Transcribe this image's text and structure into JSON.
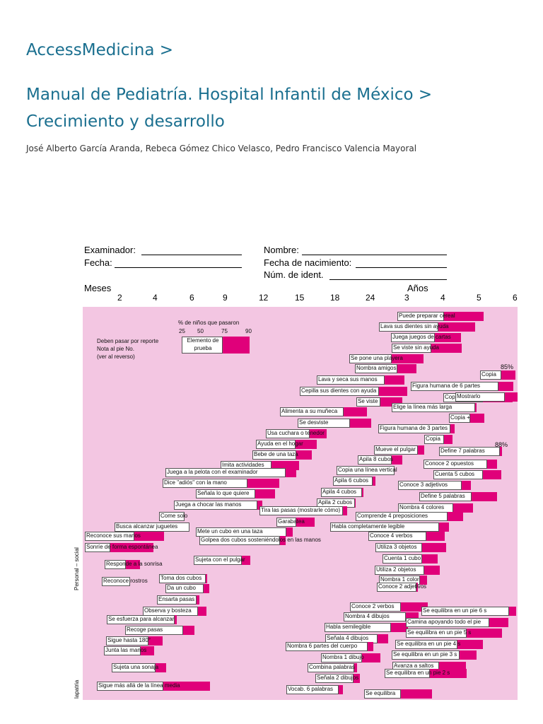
{
  "breadcrumb": {
    "root": "AccessMedicina >"
  },
  "title": "Manual de Pediatría. Hospital Infantil de México > Crecimiento y desarrollo",
  "authors": "José Alberto García Aranda, Rebeca Gómez Chico Velasco, Pedro Francisco Valencia Mayoral",
  "form": {
    "examinador": "Examinador:",
    "fecha": "Fecha:",
    "nombre": "Nombre:",
    "nacimiento": "Fecha de nacimiento:",
    "ident": "Núm. de ident."
  },
  "axis": {
    "meses": "Meses",
    "anos": "Años",
    "ticks": [
      "2",
      "4",
      "6",
      "9",
      "12",
      "15",
      "18",
      "24",
      "3",
      "4",
      "5",
      "6"
    ]
  },
  "legend": {
    "pct_title": "% de niños que pasaron",
    "pct_values": [
      "25",
      "50",
      "75",
      "90"
    ],
    "report": "Deben pasar por reporte",
    "note": "Nota al pie No.",
    "reverse": "(ver al reverso)",
    "element": "Elemento de prueba"
  },
  "percent_marks": [
    "85%",
    "88%"
  ],
  "sectors": [
    "Personal – social",
    "lapatria"
  ],
  "items": [
    "Puede preparar cereal",
    "Lava sus dientes sin ayuda",
    "Juega juegos de cartas",
    "Se viste sin ayuda",
    "Se pone una playera",
    "Nombra amigos",
    "Lava y seca sus manos",
    "Cepilla sus dientes con ayuda",
    "Se viste",
    "Alimenta a su muñeca",
    "Se desviste",
    "Usa cuchara o tenedor",
    "Ayuda en el hogar",
    "Bebe de una taza",
    "Imita actividades",
    "Juega a la pelota con el examinador",
    "Dice \"adiós\" con la mano",
    "Señala lo que quiere",
    "Juega a chocar las manos",
    "Come solo",
    "Busca alcanzar juguetes",
    "Reconoce sus manos",
    "Sonríe de forma espontánea",
    "Responde a la sonrisa",
    "Reconoce rostros",
    "Copia",
    "Figura humana de 6 partes",
    "Copia",
    "Mostrarlo",
    "Elige la línea más larga",
    "Copia +",
    "Figura humana de 3 partes",
    "Copia",
    "Mueve el pulgar",
    "Apila 8 cubos",
    "Copia una línea vertical",
    "Apila 6 cubos",
    "Apila 4 cubos",
    "Apila 2 cubos",
    "Tira las pasas (mostrarle cómo)",
    "Garabatea",
    "Mete un cubo en una taza",
    "Golpea dos cubos sosteniéndolos en las manos",
    "Sujeta con el pulgar",
    "Toma dos cubos",
    "Da un cubo",
    "Ensarta pasas",
    "Observa y bosteza",
    "Se esfuerza para alcanzar",
    "Recoge pasas",
    "Sigue hasta 180°",
    "Junta las manos",
    "Sujeta una sonaja",
    "Sigue más allá de la línea media",
    "Define 7 palabras",
    "Conoce 2 opuestos",
    "Cuenta 5 cubos",
    "Conoce 3 adjetivos",
    "Define 5 palabras",
    "Nombra 4 colores",
    "Comprende 4 preposiciones",
    "Habla completamente legible",
    "Conoce 4 verbos",
    "Utiliza 3 objetos",
    "Cuenta 1 cubo",
    "Utiliza 2 objetos",
    "Nombra 1 color",
    "Conoce 2 adjetivos",
    "Conoce 2 verbos",
    "Nombra 4 dibujos",
    "Habla semilegible",
    "Señala 4 dibujos",
    "Nombra 6 partes del cuerpo",
    "Nombra 1 dibujo",
    "Combina palabras",
    "Señala 2 dibujos",
    "Vocab. 6 palabras",
    "Se equilibra en un pie 6 s",
    "Camina apoyando todo el pie",
    "Se equilibra en un pie 5 s",
    "Se equilibra en un pie 4 s",
    "Se equilibra en un pie 3 s",
    "Avanza a saltos",
    "Se equilibra en un pie 2 s",
    "Se equilibra"
  ]
}
